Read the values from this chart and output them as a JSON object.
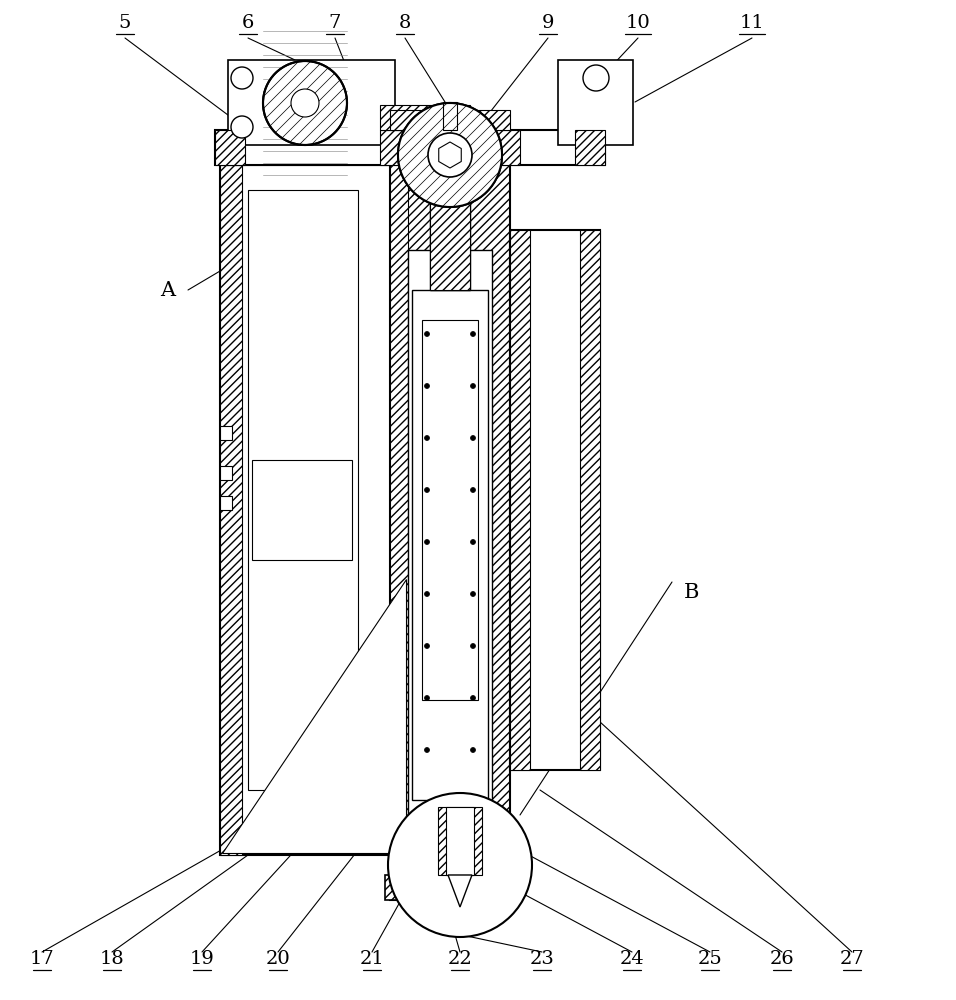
{
  "bg_color": "#ffffff",
  "line_color": "#000000",
  "label_color": "#000000",
  "top_nums": [
    [
      "5",
      125,
      968
    ],
    [
      "6",
      248,
      968
    ],
    [
      "7",
      335,
      968
    ],
    [
      "8",
      405,
      968
    ],
    [
      "9",
      548,
      968
    ],
    [
      "10",
      638,
      968
    ],
    [
      "11",
      752,
      968
    ]
  ],
  "bot_nums": [
    [
      "17",
      42,
      32
    ],
    [
      "18",
      112,
      32
    ],
    [
      "19",
      202,
      32
    ],
    [
      "20",
      278,
      32
    ],
    [
      "21",
      372,
      32
    ],
    [
      "22",
      460,
      32
    ],
    [
      "23",
      542,
      32
    ],
    [
      "24",
      632,
      32
    ],
    [
      "25",
      710,
      32
    ],
    [
      "26",
      782,
      32
    ],
    [
      "27",
      852,
      32
    ]
  ],
  "label_A": [
    168,
    710
  ],
  "label_B": [
    692,
    408
  ],
  "label_fontsize": 14
}
